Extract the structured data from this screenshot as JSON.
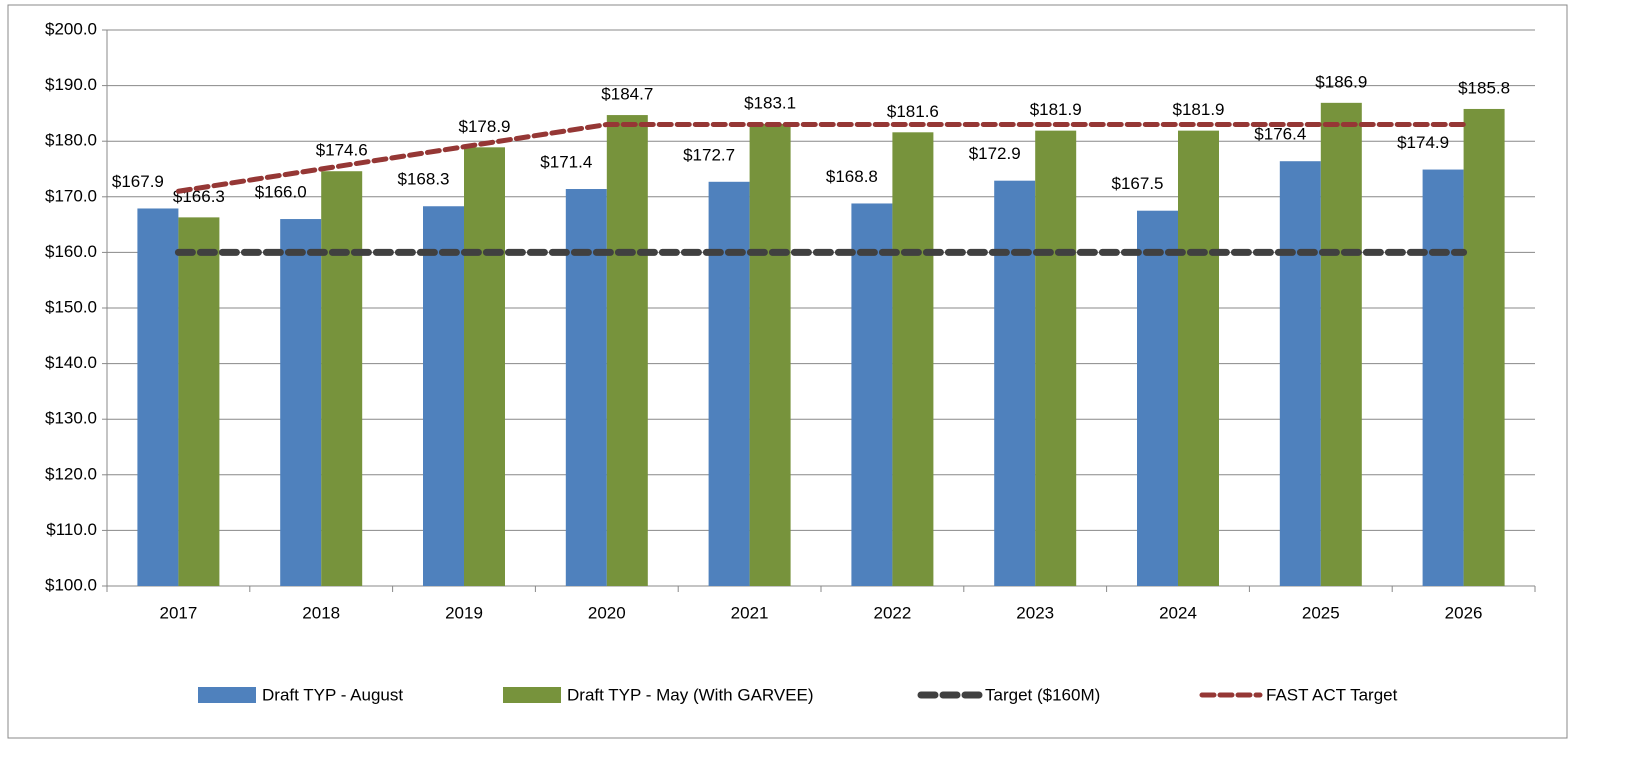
{
  "chart_data": {
    "type": "bar",
    "categories": [
      "2017",
      "2018",
      "2019",
      "2020",
      "2021",
      "2022",
      "2023",
      "2024",
      "2025",
      "2026"
    ],
    "series": [
      {
        "name": "Draft TYP - August",
        "color": "#4f81bd",
        "values": [
          167.9,
          166.0,
          168.3,
          171.4,
          172.7,
          168.8,
          172.9,
          167.5,
          176.4,
          174.9
        ],
        "value_labels": [
          "$167.9",
          "$166.0",
          "$168.3",
          "$171.4",
          "$172.7",
          "$168.8",
          "$172.9",
          "$167.5",
          "$176.4",
          "$174.9"
        ]
      },
      {
        "name": "Draft TYP - May (With GARVEE)",
        "color": "#77933c",
        "values": [
          166.3,
          174.6,
          178.9,
          184.7,
          183.1,
          181.6,
          181.9,
          181.9,
          186.9,
          185.8
        ],
        "value_labels": [
          "$166.3",
          "$174.6",
          "$178.9",
          "$184.7",
          "$183.1",
          "$181.6",
          "$181.9",
          "$181.9",
          "$186.9",
          "$185.8"
        ]
      },
      {
        "name": "Target ($160M)",
        "type": "line",
        "dashed": true,
        "color": "#404040",
        "values": [
          160,
          160,
          160,
          160,
          160,
          160,
          160,
          160,
          160,
          160
        ]
      },
      {
        "name": "FAST ACT Target",
        "type": "line",
        "dashed": true,
        "color": "#953735",
        "values": [
          171,
          175,
          179,
          183,
          183,
          183,
          183,
          183,
          183,
          183
        ]
      }
    ],
    "ylim": [
      100,
      200
    ],
    "yticks": [
      {
        "value": 100,
        "label": "$100.0"
      },
      {
        "value": 110,
        "label": "$110.0"
      },
      {
        "value": 120,
        "label": "$120.0"
      },
      {
        "value": 130,
        "label": "$130.0"
      },
      {
        "value": 140,
        "label": "$140.0"
      },
      {
        "value": 150,
        "label": "$150.0"
      },
      {
        "value": 160,
        "label": "$160.0"
      },
      {
        "value": 170,
        "label": "$170.0"
      },
      {
        "value": 180,
        "label": "$180.0"
      },
      {
        "value": 190,
        "label": "$190.0"
      },
      {
        "value": 200,
        "label": "$200.0"
      }
    ],
    "grid": true,
    "legend": "bottom"
  }
}
